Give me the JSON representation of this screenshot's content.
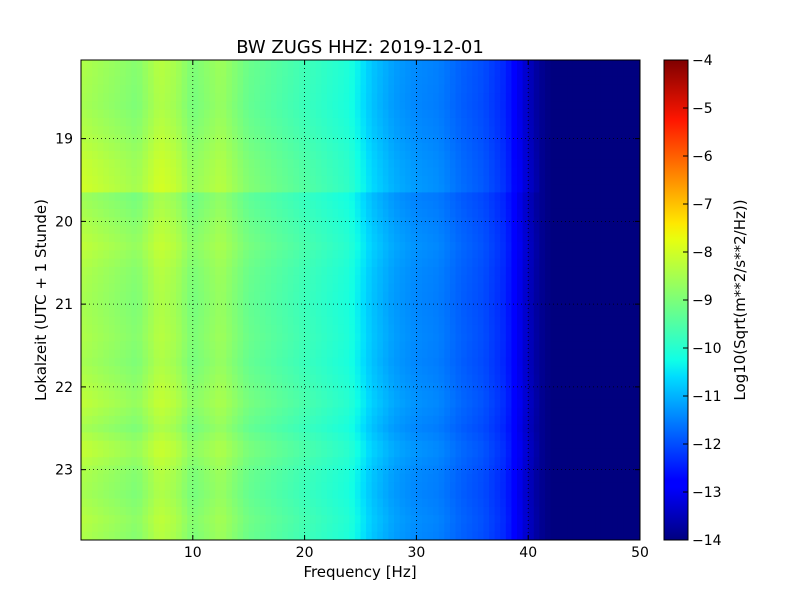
{
  "chart_data": {
    "type": "heatmap",
    "title": "BW ZUGS HHZ: 2019-12-01",
    "xlabel": "Frequency [Hz]",
    "ylabel": "Lokalzeit (UTC + 1 Stunde)",
    "xlim": [
      0,
      50
    ],
    "ylim": [
      18.05,
      23.85
    ],
    "y_inverted": true,
    "x_ticks": [
      10,
      20,
      30,
      40,
      50
    ],
    "y_ticks": [
      19,
      20,
      21,
      22,
      23
    ],
    "grid": true,
    "colormap": "jet",
    "colorbar": {
      "label": "Log10(Sqrt(m**2/s**2/Hz))",
      "range": [
        -14,
        -4
      ],
      "ticks": [
        -4,
        -5,
        -6,
        -7,
        -8,
        -9,
        -10,
        -11,
        -12,
        -13,
        -14
      ]
    },
    "spectrum_profile": {
      "frequency_hz": [
        0,
        2,
        5,
        7,
        8.5,
        10,
        12.5,
        15,
        18,
        21,
        24,
        26,
        28,
        30,
        32,
        34,
        36,
        38,
        39.5,
        41,
        42,
        50
      ],
      "log10_amplitude": [
        -8.4,
        -8.6,
        -8.9,
        -8.3,
        -8.5,
        -9.0,
        -8.6,
        -9.2,
        -9.5,
        -9.8,
        -10.1,
        -10.8,
        -11.2,
        -11.4,
        -11.5,
        -11.8,
        -12.0,
        -12.4,
        -13.2,
        -13.8,
        -14.0,
        -14.0
      ]
    },
    "hour_profile": {
      "time_hours": [
        18.1,
        18.6,
        19.0,
        19.3,
        19.6,
        19.7,
        20.0,
        20.3,
        20.6,
        21.0,
        21.4,
        21.7,
        22.0,
        22.2,
        22.5,
        22.75,
        23.0,
        23.3,
        23.6,
        23.8
      ],
      "offset_log10": [
        0.0,
        -0.1,
        0.1,
        0.3,
        0.4,
        -0.2,
        0.0,
        0.2,
        0.0,
        -0.1,
        0.0,
        -0.1,
        0.1,
        0.2,
        -0.1,
        0.3,
        0.0,
        -0.1,
        0.1,
        0.0
      ]
    }
  }
}
